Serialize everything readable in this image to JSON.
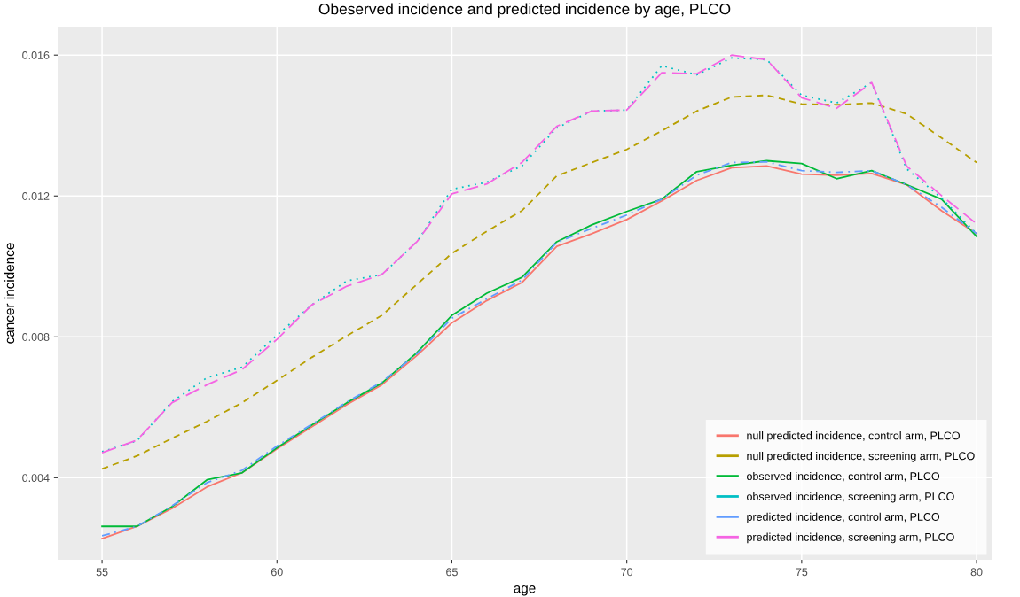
{
  "chart_data": {
    "type": "line",
    "title": "Obeserved incidence and predicted incidence by age, PLCO",
    "xlabel": "age",
    "ylabel": "cancer incidence",
    "x": [
      55,
      56,
      57,
      58,
      59,
      60,
      61,
      62,
      63,
      64,
      65,
      66,
      67,
      68,
      69,
      70,
      71,
      72,
      73,
      74,
      75,
      76,
      77,
      78,
      79,
      80
    ],
    "series": [
      {
        "name": "null predicted incidence, control arm, PLCO",
        "color": "#f8766d",
        "line_style": "solid",
        "values": [
          0.00227,
          0.00262,
          0.00313,
          0.00374,
          0.00414,
          0.00482,
          0.00545,
          0.00608,
          0.00664,
          0.00747,
          0.0084,
          0.00903,
          0.00954,
          0.01057,
          0.01093,
          0.01133,
          0.01186,
          0.01244,
          0.0128,
          0.01285,
          0.01262,
          0.01259,
          0.01264,
          0.01232,
          0.01158,
          0.01093
        ]
      },
      {
        "name": "null predicted incidence, screening arm, PLCO",
        "color": "#b79f00",
        "line_style": "dashed",
        "values": [
          0.00425,
          0.00462,
          0.00512,
          0.0056,
          0.00613,
          0.00676,
          0.00742,
          0.00803,
          0.00861,
          0.00949,
          0.01037,
          0.011,
          0.01158,
          0.01257,
          0.01295,
          0.01332,
          0.01385,
          0.01441,
          0.01481,
          0.01486,
          0.01461,
          0.01459,
          0.01464,
          0.01433,
          0.01365,
          0.01295
        ]
      },
      {
        "name": "observed incidence, control arm, PLCO",
        "color": "#00ba38",
        "line_style": "solid",
        "values": [
          0.00262,
          0.00262,
          0.00318,
          0.00394,
          0.00414,
          0.00485,
          0.0055,
          0.00613,
          0.00669,
          0.00755,
          0.00861,
          0.00924,
          0.00969,
          0.0107,
          0.01118,
          0.01156,
          0.01191,
          0.01269,
          0.01287,
          0.013,
          0.01292,
          0.01249,
          0.01272,
          0.01232,
          0.01191,
          0.01085
        ]
      },
      {
        "name": "observed incidence, screening arm, PLCO",
        "color": "#00bfc4",
        "line_style": "dotted",
        "values": [
          0.00474,
          0.00505,
          0.00616,
          0.00684,
          0.00714,
          0.00805,
          0.00891,
          0.00959,
          0.00977,
          0.0107,
          0.01219,
          0.01239,
          0.01285,
          0.01393,
          0.01441,
          0.01444,
          0.0157,
          0.01544,
          0.01592,
          0.01587,
          0.01486,
          0.01464,
          0.01522,
          0.01277,
          0.01194,
          0.01093
        ]
      },
      {
        "name": "predicted incidence, control arm, PLCO",
        "color": "#619cff",
        "line_style": "dashdot",
        "values": [
          0.00235,
          0.00262,
          0.0032,
          0.00386,
          0.00421,
          0.0049,
          0.00552,
          0.00615,
          0.00672,
          0.00752,
          0.00853,
          0.00908,
          0.00961,
          0.01068,
          0.01108,
          0.01146,
          0.01191,
          0.01259,
          0.01295,
          0.01297,
          0.01272,
          0.01267,
          0.01272,
          0.01232,
          0.01168,
          0.01093
        ]
      },
      {
        "name": "predicted incidence, screening arm, PLCO",
        "color": "#f564e3",
        "line_style": "longdash",
        "values": [
          0.00471,
          0.00507,
          0.00613,
          0.00664,
          0.00707,
          0.00793,
          0.00891,
          0.00944,
          0.00977,
          0.0107,
          0.01206,
          0.01234,
          0.01295,
          0.01398,
          0.01441,
          0.01444,
          0.0155,
          0.01547,
          0.016,
          0.01587,
          0.01479,
          0.01449,
          0.01522,
          0.01285,
          0.01201,
          0.01121
        ]
      }
    ],
    "xlim": [
      53.73,
      80.43
    ],
    "ylim": [
      0.00167,
      0.01681
    ],
    "xticks": [
      55,
      60,
      65,
      70,
      75,
      80
    ],
    "yticks": [
      {
        "value": 0.004,
        "label": "0.004"
      },
      {
        "value": 0.008,
        "label": "0.008"
      },
      {
        "value": 0.012,
        "label": "0.012"
      },
      {
        "value": 0.016,
        "label": "0.016"
      }
    ],
    "grid": true,
    "legend": "bottom right",
    "marker": "none"
  }
}
